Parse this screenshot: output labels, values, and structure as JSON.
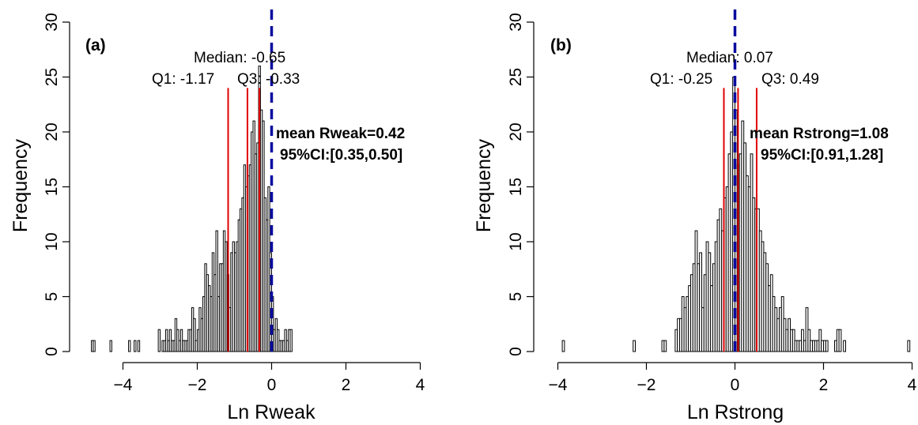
{
  "chart_data": [
    {
      "type": "bar",
      "panel_label": "(a)",
      "xlabel": "Ln Rweak",
      "ylabel": "Frequency",
      "xlim": [
        -5,
        5
      ],
      "ylim": [
        0,
        30
      ],
      "xticks": [
        -4,
        -2,
        0,
        2,
        4
      ],
      "yticks": [
        0,
        5,
        10,
        15,
        20,
        25,
        30
      ],
      "bin_width": 0.05,
      "bin_starts": [
        -4.85,
        -4.8,
        -4.35,
        -3.85,
        -3.7,
        -3.6,
        -3.05,
        -2.95,
        -2.9,
        -2.85,
        -2.8,
        -2.75,
        -2.7,
        -2.65,
        -2.6,
        -2.55,
        -2.5,
        -2.45,
        -2.4,
        -2.35,
        -2.3,
        -2.25,
        -2.2,
        -2.15,
        -2.1,
        -2.05,
        -2.0,
        -1.95,
        -1.9,
        -1.85,
        -1.8,
        -1.75,
        -1.7,
        -1.65,
        -1.6,
        -1.55,
        -1.5,
        -1.45,
        -1.4,
        -1.35,
        -1.3,
        -1.25,
        -1.2,
        -1.15,
        -1.1,
        -1.05,
        -1.0,
        -0.95,
        -0.9,
        -0.85,
        -0.8,
        -0.75,
        -0.7,
        -0.65,
        -0.6,
        -0.55,
        -0.5,
        -0.45,
        -0.4,
        -0.35,
        -0.3,
        -0.25,
        -0.2,
        -0.15,
        -0.1,
        -0.05,
        0.0,
        0.05,
        0.1,
        0.15,
        0.2,
        0.25,
        0.3,
        0.35,
        0.4,
        0.45,
        0.5
      ],
      "counts": [
        1,
        1,
        1,
        1,
        1,
        1,
        2,
        1,
        1,
        2,
        1,
        2,
        1,
        1,
        3,
        2,
        1,
        2,
        1,
        1,
        1,
        2,
        2,
        4,
        3,
        1,
        2,
        4,
        3,
        5,
        8,
        7,
        6,
        5,
        9,
        7,
        11,
        5,
        8,
        8,
        11,
        10,
        7,
        4,
        9,
        10,
        9,
        10,
        12,
        13,
        14,
        17,
        15,
        16,
        17,
        20,
        21,
        18,
        19,
        26,
        22,
        21,
        14,
        12,
        15,
        9,
        5,
        2,
        3,
        2,
        1,
        1,
        1,
        2,
        1,
        2,
        2
      ],
      "quantile_lines": [
        -1.17,
        -0.65,
        -0.33
      ],
      "zero_line": 0,
      "annotations": {
        "median": "Median: -0.65",
        "q1": "Q1: -1.17",
        "q3": "Q3: -0.33",
        "mean": "mean Rweak=0.42",
        "ci": "95%CI:[0.35,0.50]"
      }
    },
    {
      "type": "bar",
      "panel_label": "(b)",
      "xlabel": "Ln Rstrong",
      "ylabel": "Frequency",
      "xlim": [
        -4,
        4
      ],
      "ylim": [
        0,
        30
      ],
      "xticks": [
        -4,
        -2,
        0,
        2,
        4
      ],
      "yticks": [
        0,
        5,
        10,
        15,
        20,
        25,
        30
      ],
      "bin_width": 0.05,
      "bin_starts": [
        -3.9,
        -2.3,
        -1.65,
        -1.6,
        -1.35,
        -1.3,
        -1.25,
        -1.2,
        -1.15,
        -1.1,
        -1.05,
        -1.0,
        -0.95,
        -0.9,
        -0.85,
        -0.8,
        -0.75,
        -0.7,
        -0.65,
        -0.6,
        -0.55,
        -0.5,
        -0.45,
        -0.4,
        -0.35,
        -0.3,
        -0.25,
        -0.2,
        -0.15,
        -0.1,
        -0.05,
        0.0,
        0.05,
        0.1,
        0.15,
        0.2,
        0.25,
        0.3,
        0.35,
        0.4,
        0.45,
        0.5,
        0.55,
        0.6,
        0.65,
        0.7,
        0.75,
        0.8,
        0.85,
        0.9,
        0.95,
        1.0,
        1.05,
        1.1,
        1.15,
        1.2,
        1.25,
        1.3,
        1.35,
        1.4,
        1.45,
        1.5,
        1.55,
        1.6,
        1.65,
        1.7,
        1.75,
        1.8,
        1.85,
        1.9,
        1.95,
        2.0,
        2.05,
        2.25,
        2.3,
        2.35,
        2.45,
        3.9
      ],
      "counts": [
        1,
        1,
        1,
        1,
        2,
        3,
        3,
        5,
        4,
        5,
        6,
        7,
        8,
        11,
        8,
        9,
        4,
        7,
        10,
        9,
        6,
        8,
        10,
        12,
        13,
        11,
        14,
        15,
        18,
        20,
        25,
        22,
        17,
        18,
        21,
        19,
        16,
        15,
        18,
        14,
        13,
        13,
        11,
        10,
        9,
        8,
        6,
        7,
        5,
        4,
        3,
        4,
        5,
        3,
        2,
        3,
        2,
        2,
        1,
        1,
        1,
        2,
        1,
        4,
        2,
        1,
        1,
        1,
        1,
        2,
        1,
        1,
        1,
        1,
        2,
        2,
        1,
        1
      ],
      "quantile_lines": [
        -0.25,
        0.07,
        0.49
      ],
      "zero_line": 0,
      "annotations": {
        "median": "Median: 0.07",
        "q1": "Q1: -0.25",
        "q3": "Q3: 0.49",
        "mean": "mean Rstrong=1.08",
        "ci": "95%CI:[0.91,1.28]"
      }
    }
  ],
  "colors": {
    "quantile_line": "#e00000",
    "zero_line": "#0a0aa0",
    "bar_fill": "#ffffff",
    "bar_stroke": "#000000"
  }
}
